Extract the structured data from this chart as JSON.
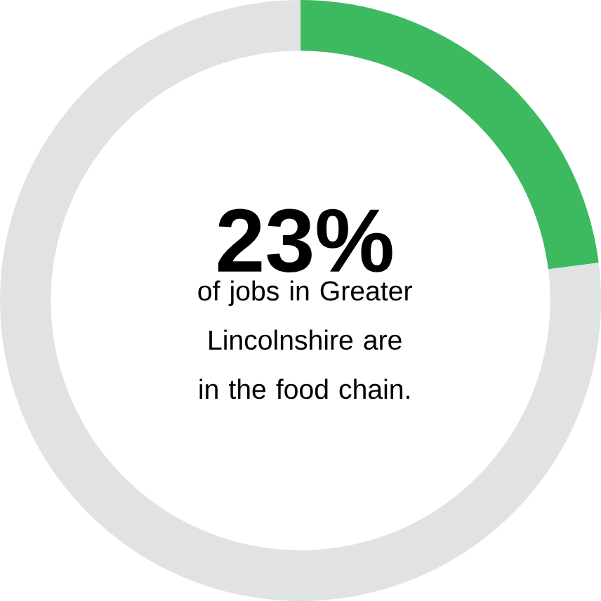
{
  "chart_data": {
    "type": "donut",
    "categories": [
      null,
      null
    ],
    "values": [
      23,
      77
    ],
    "colors": [
      "#3dba5f",
      "#e1e2e4"
    ],
    "annotations": [
      "23%",
      "of jobs in Greater Lincolnshire are in the food chain."
    ]
  }
}
